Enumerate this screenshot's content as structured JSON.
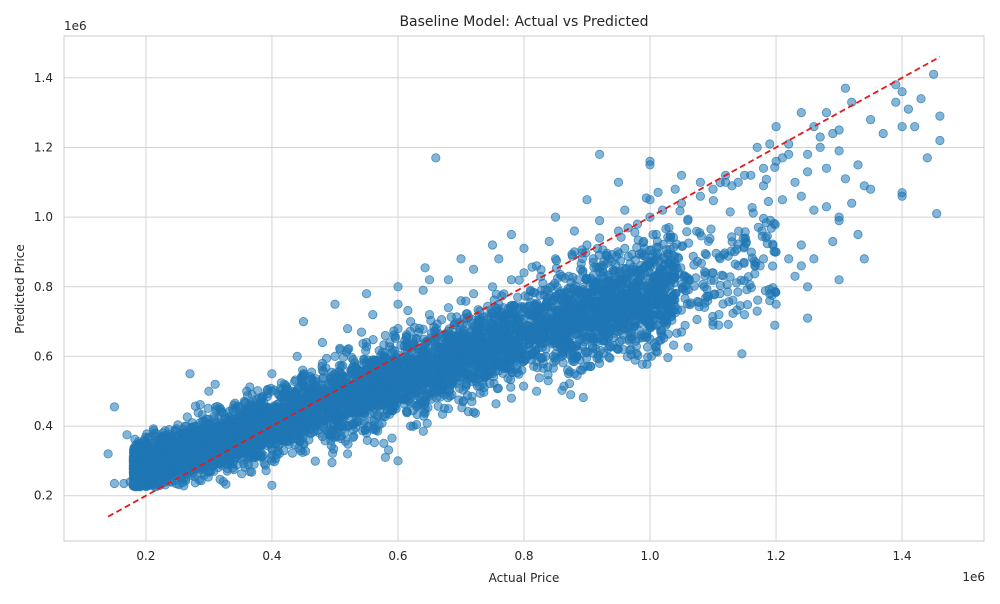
{
  "chart_data": {
    "type": "scatter",
    "title": "Baseline Model: Actual vs Predicted",
    "xlabel": "Actual Price",
    "ylabel": "Predicted Price",
    "x_multiplier_label": "1e6",
    "y_multiplier_label": "1e6",
    "xlim": [
      0.07,
      1.53
    ],
    "ylim": [
      0.07,
      1.52
    ],
    "x_ticks": [
      0.2,
      0.4,
      0.6,
      0.8,
      1.0,
      1.2,
      1.4
    ],
    "x_tick_labels": [
      "0.2",
      "0.4",
      "0.6",
      "0.8",
      "1.0",
      "1.2",
      "1.4"
    ],
    "y_ticks": [
      0.2,
      0.4,
      0.6,
      0.8,
      1.0,
      1.2,
      1.4
    ],
    "y_tick_labels": [
      "0.2",
      "0.4",
      "0.6",
      "0.8",
      "1.0",
      "1.2",
      "1.4"
    ],
    "grid": true,
    "point_color": "#1f77b4",
    "point_alpha": 0.55,
    "reference_line": {
      "style": "dashed",
      "color": "#e31a1c",
      "points": [
        [
          0.14,
          0.14
        ],
        [
          1.46,
          1.46
        ]
      ]
    },
    "points": [
      [
        0.14,
        0.32
      ],
      [
        0.15,
        0.455
      ],
      [
        0.15,
        0.235
      ],
      [
        0.17,
        0.375
      ],
      [
        0.165,
        0.235
      ],
      [
        0.175,
        0.24
      ],
      [
        0.18,
        0.235
      ],
      [
        0.19,
        0.25
      ],
      [
        0.2,
        0.26
      ],
      [
        0.21,
        0.27
      ],
      [
        0.22,
        0.28
      ],
      [
        0.23,
        0.29
      ],
      [
        0.25,
        0.3
      ],
      [
        0.27,
        0.32
      ],
      [
        0.28,
        0.35
      ],
      [
        0.3,
        0.37
      ],
      [
        0.32,
        0.38
      ],
      [
        0.34,
        0.42
      ],
      [
        0.36,
        0.45
      ],
      [
        0.38,
        0.48
      ],
      [
        0.4,
        0.5
      ],
      [
        0.42,
        0.52
      ],
      [
        0.45,
        0.55
      ],
      [
        0.48,
        0.58
      ],
      [
        0.5,
        0.6
      ],
      [
        0.52,
        0.62
      ],
      [
        0.55,
        0.64
      ],
      [
        0.58,
        0.66
      ],
      [
        0.6,
        0.68
      ],
      [
        0.62,
        0.7
      ],
      [
        0.65,
        0.72
      ],
      [
        0.68,
        0.74
      ],
      [
        0.7,
        0.76
      ],
      [
        0.72,
        0.78
      ],
      [
        0.75,
        0.8
      ],
      [
        0.78,
        0.82
      ],
      [
        0.8,
        0.84
      ],
      [
        0.82,
        0.86
      ],
      [
        0.85,
        0.88
      ],
      [
        0.88,
        0.9
      ],
      [
        0.9,
        0.92
      ],
      [
        0.92,
        0.94
      ],
      [
        0.95,
        0.96
      ],
      [
        0.98,
        0.98
      ],
      [
        1.0,
        1.0
      ],
      [
        1.02,
        1.02
      ],
      [
        1.05,
        1.04
      ],
      [
        1.08,
        1.06
      ],
      [
        1.1,
        1.08
      ],
      [
        1.12,
        1.1
      ],
      [
        1.15,
        1.12
      ],
      [
        1.18,
        1.14
      ],
      [
        1.2,
        1.16
      ],
      [
        1.22,
        1.18
      ],
      [
        0.22,
        0.34
      ],
      [
        0.24,
        0.36
      ],
      [
        0.26,
        0.38
      ],
      [
        0.29,
        0.33
      ],
      [
        0.31,
        0.35
      ],
      [
        0.33,
        0.36
      ],
      [
        0.35,
        0.39
      ],
      [
        0.37,
        0.41
      ],
      [
        0.39,
        0.43
      ],
      [
        0.41,
        0.44
      ],
      [
        0.43,
        0.47
      ],
      [
        0.46,
        0.5
      ],
      [
        0.49,
        0.52
      ],
      [
        0.51,
        0.55
      ],
      [
        0.53,
        0.56
      ],
      [
        0.56,
        0.59
      ],
      [
        0.59,
        0.61
      ],
      [
        0.61,
        0.63
      ],
      [
        0.63,
        0.65
      ],
      [
        0.66,
        0.67
      ],
      [
        0.69,
        0.69
      ],
      [
        0.71,
        0.71
      ],
      [
        0.73,
        0.73
      ],
      [
        0.76,
        0.75
      ],
      [
        0.79,
        0.77
      ],
      [
        0.81,
        0.79
      ],
      [
        0.83,
        0.81
      ],
      [
        0.86,
        0.83
      ],
      [
        0.89,
        0.85
      ],
      [
        0.91,
        0.87
      ],
      [
        0.93,
        0.89
      ],
      [
        0.96,
        0.91
      ],
      [
        0.99,
        0.93
      ],
      [
        1.01,
        0.95
      ],
      [
        1.03,
        0.97
      ],
      [
        1.06,
        0.99
      ],
      [
        0.26,
        0.25
      ],
      [
        0.3,
        0.27
      ],
      [
        0.34,
        0.3
      ],
      [
        0.38,
        0.33
      ],
      [
        0.42,
        0.36
      ],
      [
        0.46,
        0.39
      ],
      [
        0.5,
        0.42
      ],
      [
        0.54,
        0.45
      ],
      [
        0.58,
        0.48
      ],
      [
        0.62,
        0.51
      ],
      [
        0.66,
        0.54
      ],
      [
        0.7,
        0.57
      ],
      [
        0.74,
        0.6
      ],
      [
        0.78,
        0.63
      ],
      [
        0.82,
        0.66
      ],
      [
        0.86,
        0.69
      ],
      [
        0.9,
        0.72
      ],
      [
        0.94,
        0.75
      ],
      [
        0.98,
        0.78
      ],
      [
        1.02,
        0.8
      ],
      [
        1.06,
        0.82
      ],
      [
        1.1,
        0.84
      ],
      [
        1.14,
        0.86
      ],
      [
        1.18,
        0.88
      ],
      [
        0.2,
        0.3
      ],
      [
        0.24,
        0.32
      ],
      [
        0.28,
        0.4
      ],
      [
        0.32,
        0.44
      ],
      [
        0.36,
        0.5
      ],
      [
        0.4,
        0.55
      ],
      [
        0.44,
        0.6
      ],
      [
        0.48,
        0.64
      ],
      [
        0.52,
        0.68
      ],
      [
        0.56,
        0.72
      ],
      [
        0.6,
        0.75
      ],
      [
        0.64,
        0.79
      ],
      [
        0.68,
        0.82
      ],
      [
        0.72,
        0.85
      ],
      [
        0.76,
        0.88
      ],
      [
        0.8,
        0.91
      ],
      [
        0.84,
        0.93
      ],
      [
        0.88,
        0.96
      ],
      [
        0.92,
        0.99
      ],
      [
        0.96,
        1.02
      ],
      [
        1.0,
        1.05
      ],
      [
        1.04,
        1.08
      ],
      [
        1.08,
        1.1
      ],
      [
        1.12,
        1.12
      ],
      [
        0.45,
        0.7
      ],
      [
        0.5,
        0.75
      ],
      [
        0.55,
        0.78
      ],
      [
        0.6,
        0.8
      ],
      [
        0.65,
        0.82
      ],
      [
        0.7,
        0.88
      ],
      [
        0.75,
        0.92
      ],
      [
        0.78,
        0.95
      ],
      [
        0.85,
        1.0
      ],
      [
        0.9,
        1.05
      ],
      [
        0.95,
        1.1
      ],
      [
        1.0,
        1.15
      ],
      [
        0.66,
        1.17
      ],
      [
        0.92,
        1.18
      ],
      [
        1.0,
        1.16
      ],
      [
        1.05,
        1.12
      ],
      [
        0.35,
        0.32
      ],
      [
        0.4,
        0.3
      ],
      [
        0.45,
        0.35
      ],
      [
        0.52,
        0.32
      ],
      [
        0.58,
        0.31
      ],
      [
        0.6,
        0.3
      ],
      [
        0.55,
        0.38
      ],
      [
        0.62,
        0.4
      ],
      [
        0.68,
        0.45
      ],
      [
        0.72,
        0.44
      ],
      [
        0.78,
        0.48
      ],
      [
        0.82,
        0.5
      ],
      [
        0.88,
        0.55
      ],
      [
        0.92,
        0.58
      ],
      [
        0.97,
        0.62
      ],
      [
        1.0,
        0.65
      ],
      [
        1.05,
        0.67
      ],
      [
        1.1,
        0.7
      ],
      [
        1.15,
        0.72
      ],
      [
        1.2,
        0.75
      ],
      [
        1.25,
        0.8
      ],
      [
        1.3,
        0.82
      ],
      [
        0.27,
        0.55
      ],
      [
        0.3,
        0.5
      ],
      [
        0.31,
        0.52
      ],
      [
        1.1,
        0.69
      ],
      [
        1.17,
        0.73
      ],
      [
        1.19,
        0.76
      ],
      [
        1.25,
        0.71
      ],
      [
        1.23,
        0.83
      ],
      [
        1.2,
        0.9
      ],
      [
        1.22,
        0.88
      ],
      [
        1.24,
        0.86
      ],
      [
        1.26,
        0.88
      ],
      [
        1.24,
        0.92
      ],
      [
        1.21,
        1.05
      ],
      [
        1.23,
        1.1
      ],
      [
        1.24,
        1.06
      ],
      [
        1.25,
        1.13
      ],
      [
        1.26,
        1.02
      ],
      [
        1.28,
        1.03
      ],
      [
        1.3,
        1.0
      ],
      [
        1.32,
        1.04
      ],
      [
        1.33,
        0.95
      ],
      [
        1.34,
        0.88
      ],
      [
        1.29,
        0.93
      ],
      [
        1.3,
        0.99
      ],
      [
        1.2,
        1.26
      ],
      [
        1.24,
        1.3
      ],
      [
        1.26,
        1.26
      ],
      [
        1.28,
        1.3
      ],
      [
        1.3,
        1.25
      ],
      [
        1.32,
        1.33
      ],
      [
        1.31,
        1.37
      ],
      [
        1.35,
        1.28
      ],
      [
        1.37,
        1.24
      ],
      [
        1.39,
        1.33
      ],
      [
        1.4,
        1.36
      ],
      [
        1.41,
        1.31
      ],
      [
        1.43,
        1.34
      ],
      [
        1.44,
        1.17
      ],
      [
        1.45,
        1.41
      ],
      [
        1.46,
        1.29
      ],
      [
        1.46,
        1.22
      ],
      [
        1.455,
        1.01
      ],
      [
        1.4,
        1.07
      ],
      [
        1.4,
        1.06
      ],
      [
        1.39,
        1.38
      ],
      [
        1.42,
        1.26
      ],
      [
        1.4,
        1.26
      ],
      [
        1.3,
        1.19
      ],
      [
        1.31,
        1.11
      ],
      [
        1.33,
        1.15
      ],
      [
        1.35,
        1.08
      ],
      [
        1.34,
        1.09
      ],
      [
        1.28,
        1.14
      ],
      [
        1.27,
        1.2
      ],
      [
        1.25,
        1.18
      ],
      [
        1.27,
        1.23
      ],
      [
        1.29,
        1.24
      ],
      [
        1.22,
        1.21
      ],
      [
        1.21,
        1.17
      ],
      [
        1.18,
        1.09
      ],
      [
        1.16,
        1.12
      ],
      [
        1.14,
        1.1
      ],
      [
        1.13,
        1.09
      ],
      [
        1.17,
        1.2
      ],
      [
        1.19,
        1.21
      ]
    ]
  }
}
